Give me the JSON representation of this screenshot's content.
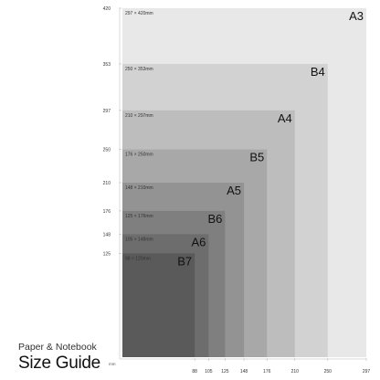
{
  "brand": {
    "line1": "Paper & Notebook",
    "line2": "Size Guide"
  },
  "axis": {
    "unit": "mm",
    "max_width_mm": 297,
    "max_height_mm": 420
  },
  "sizes": [
    {
      "name": "A3",
      "dims": "297 × 420mm",
      "width_mm": 297,
      "height_mm": 420,
      "color": "#e8e8e8",
      "width_tick": "297",
      "height_tick": "420"
    },
    {
      "name": "B4",
      "dims": "250 × 353mm",
      "width_mm": 250,
      "height_mm": 353,
      "color": "#d2d2d2",
      "width_tick": "250",
      "height_tick": "353"
    },
    {
      "name": "A4",
      "dims": "210 × 297mm",
      "width_mm": 210,
      "height_mm": 297,
      "color": "#bdbdbd",
      "width_tick": "210",
      "height_tick": "297"
    },
    {
      "name": "B5",
      "dims": "176 × 250mm",
      "width_mm": 176,
      "height_mm": 250,
      "color": "#a8a8a8",
      "width_tick": "176",
      "height_tick": "250"
    },
    {
      "name": "A5",
      "dims": "148 × 210mm",
      "width_mm": 148,
      "height_mm": 210,
      "color": "#939393",
      "width_tick": "148",
      "height_tick": "210"
    },
    {
      "name": "B6",
      "dims": "125 × 176mm",
      "width_mm": 125,
      "height_mm": 176,
      "color": "#7f7f7f",
      "width_tick": "125",
      "height_tick": "176"
    },
    {
      "name": "A6",
      "dims": "105 × 148mm",
      "width_mm": 105,
      "height_mm": 148,
      "color": "#6d6d6d",
      "width_tick": "105",
      "height_tick": "148"
    },
    {
      "name": "B7",
      "dims": "88 × 125mm",
      "width_mm": 88,
      "height_mm": 125,
      "color": "#5a5a5a",
      "width_tick": "88",
      "height_tick": "125"
    }
  ]
}
